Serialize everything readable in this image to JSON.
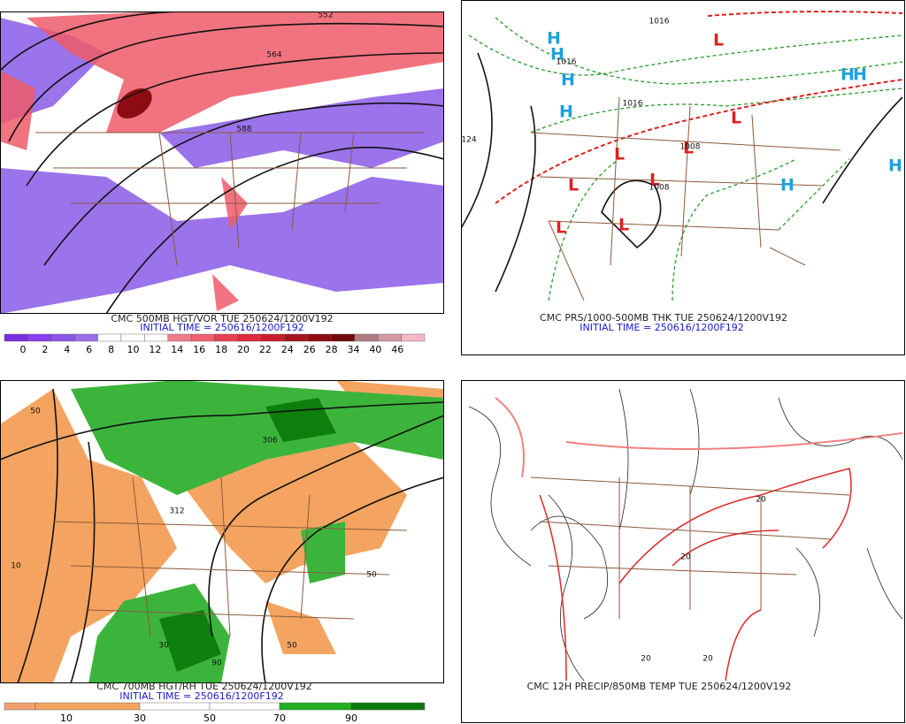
{
  "panels": [
    {
      "title": "CMC 500MB HGT/VOR TUE 250624/1200V192",
      "initial": "INITIAL TIME = 250616/1200F192",
      "colorbar": {
        "labels": [
          0,
          2,
          4,
          6,
          8,
          10,
          12,
          14,
          16,
          18,
          20,
          22,
          24,
          26,
          28,
          34,
          40,
          46
        ],
        "colors": [
          "#7b2ee0",
          "#8a3ff0",
          "#8c55e8",
          "#9a6ee8",
          "#ffffff",
          "#ffffff",
          "#ffffff",
          "#f07a8a",
          "#f06070",
          "#e84050",
          "#e02a3a",
          "#c81e2a",
          "#a8141e",
          "#8c0c12",
          "#700a0a",
          "#b07a82",
          "#d49aa4",
          "#f4b8c4"
        ]
      },
      "contour_labels": [
        "552",
        "564",
        "588"
      ]
    },
    {
      "title": "CMC PRS/1000-500MB THK TUE 250624/1200V192",
      "initial": "INITIAL TIME = 250616/1200F192",
      "markers": [
        "H",
        "H",
        "H",
        "H",
        "L",
        "L",
        "L",
        "L",
        "L",
        "L",
        "L",
        "L",
        "H",
        "H",
        "H",
        "H"
      ],
      "contour_labels": [
        "1016",
        "1016",
        "1016",
        "1008",
        "1008",
        "124"
      ]
    },
    {
      "title": "CMC 700MB HGT/RH TUE 250624/1200V192",
      "initial": "INITIAL TIME = 250616/1200F192",
      "colorbar": {
        "labels": [
          10,
          30,
          50,
          70,
          90
        ],
        "colors": [
          "#f2a070",
          "#f4a460",
          "#ffffff",
          "#ffffff",
          "#22b022",
          "#0a7a0a"
        ]
      },
      "contour_labels": [
        "50",
        "10",
        "30",
        "50",
        "90",
        "312",
        "306",
        "50"
      ]
    },
    {
      "title": "CMC 12H PRECIP/850MB TEMP TUE 250624/1200V192",
      "contour_labels": [
        "20",
        "20",
        "20",
        "20"
      ]
    }
  ]
}
